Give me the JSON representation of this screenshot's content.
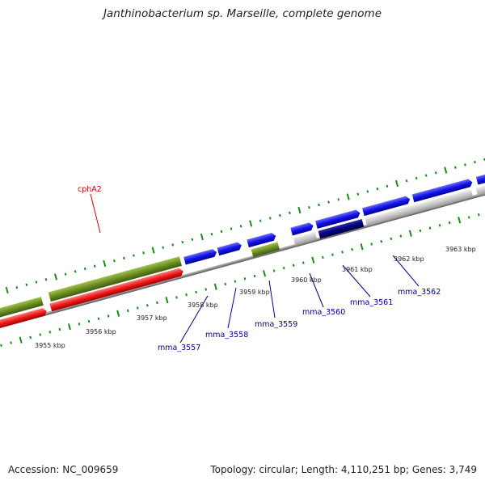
{
  "title": "Janthinobacterium sp. Marseille, complete genome",
  "accession": "Accession: NC_009659",
  "summary": "Topology: circular; Length: 4,110,251 bp; Genes: 3,749",
  "colors": {
    "forward_gene": "#1414e6",
    "reverse_gene": "#ee1a1a",
    "rna_gene": "#6b8e23",
    "pseudo_gene": "#c8c8c8",
    "selected_gene": "#000080",
    "tick_mark": "#1a8a1a",
    "backbone": "#8a8a8a"
  },
  "kbp_labels": [
    "3955 kbp",
    "3956 kbp",
    "3957 kbp",
    "3958 kbp",
    "3959 kbp",
    "3960 kbp",
    "3961 kbp",
    "3962 kbp",
    "3963 kbp"
  ],
  "gene_labels": [
    "cphA2",
    "mma_3557",
    "mma_3558",
    "mma_3559",
    "mma_3560",
    "mma_3561",
    "mma_3562"
  ]
}
